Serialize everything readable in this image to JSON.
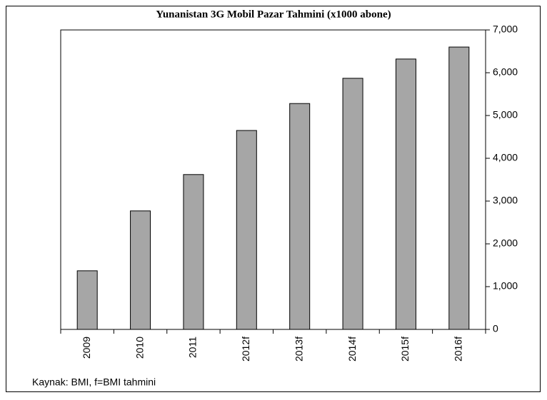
{
  "chart_data": {
    "type": "bar",
    "title": "Yunanistan 3G Mobil Pazar Tahmini (x1000 abone)",
    "categories": [
      "2009",
      "2010",
      "2011",
      "2012f",
      "2013f",
      "2014f",
      "2015f",
      "2016f"
    ],
    "values": [
      1370,
      2770,
      3620,
      4650,
      5280,
      5870,
      6320,
      6600
    ],
    "color": "#a6a6a6",
    "ylim": [
      0,
      7000
    ],
    "yticks": [
      0,
      {
        "value": 1000,
        "label": "1,000"
      },
      {
        "value": 2000,
        "label": "2,000"
      },
      {
        "value": 3000,
        "label": "3,000"
      },
      {
        "value": 4000,
        "label": "4,000"
      },
      {
        "value": 5000,
        "label": "5,000"
      },
      {
        "value": 6000,
        "label": "6,000"
      },
      {
        "value": 7000,
        "label": "7,000"
      }
    ],
    "yaxis_side": "right",
    "grid": false,
    "source": "Kaynak: BMI, f=BMI tahmini"
  }
}
